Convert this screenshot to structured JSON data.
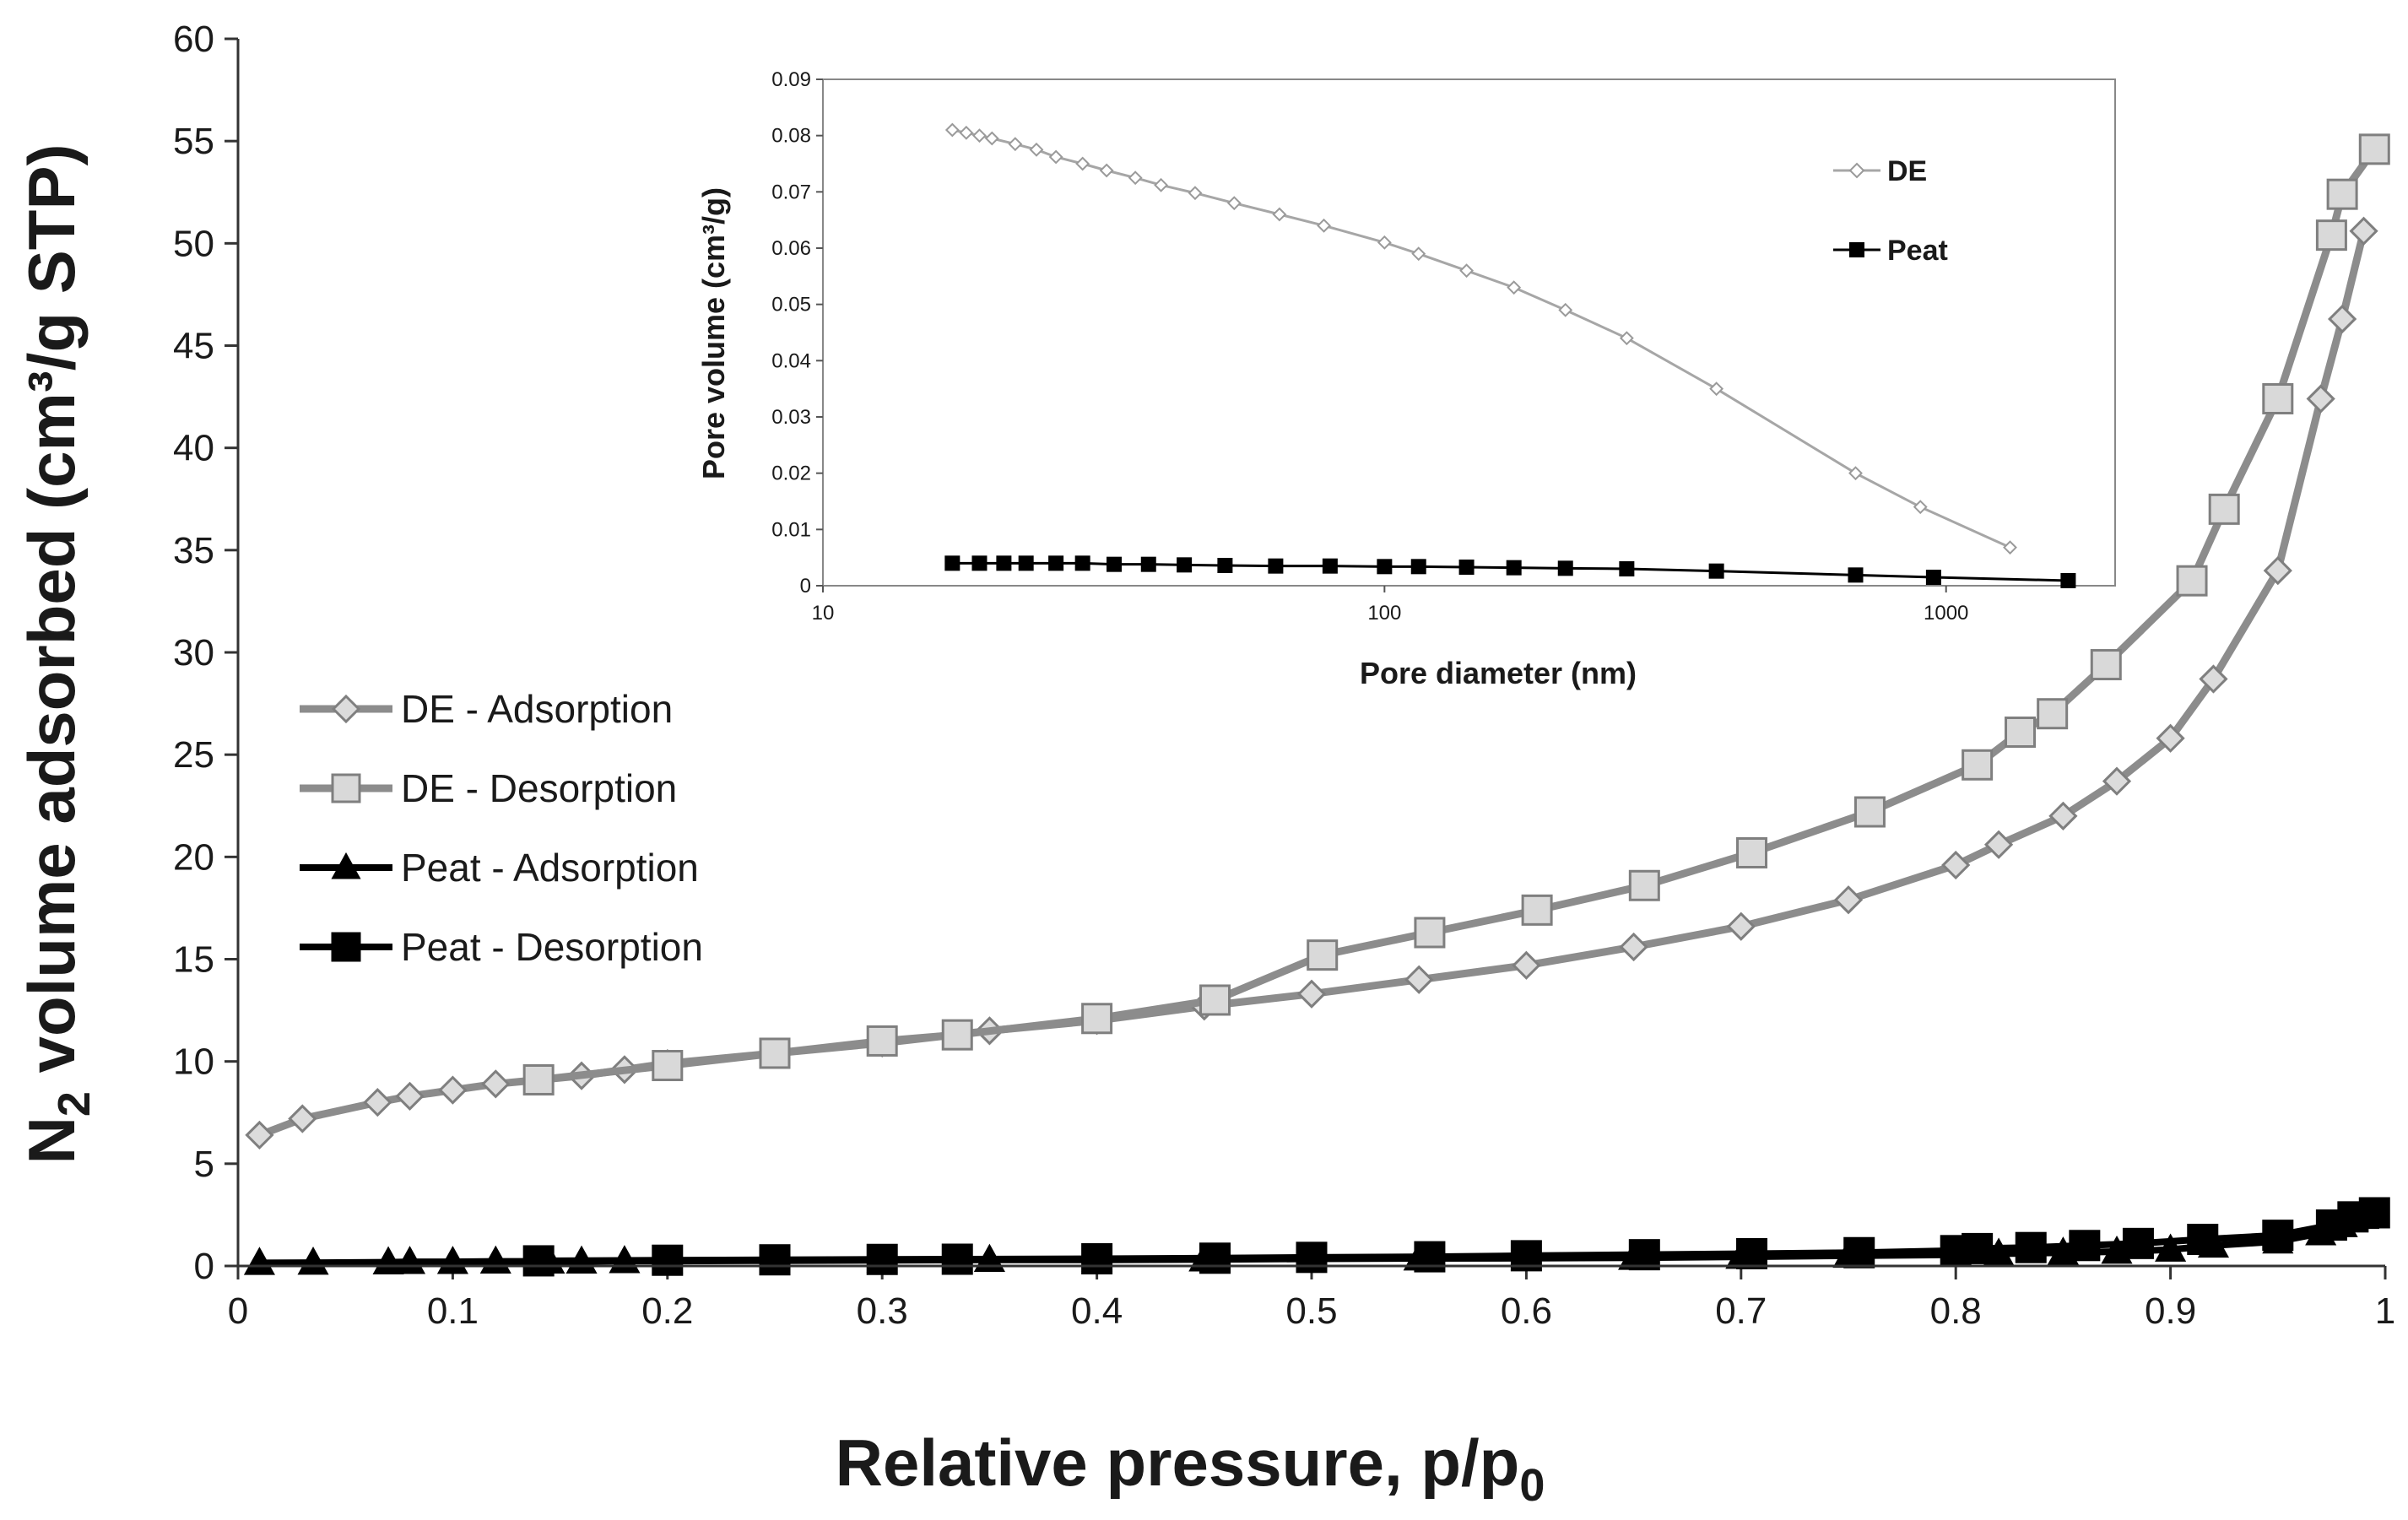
{
  "chart_data": [
    {
      "type": "line",
      "name": "main",
      "xlabel": "Relative pressure, p/p",
      "xlabel_sub": "0",
      "ylabel_pre": "N",
      "ylabel_sub": "2",
      "ylabel_post": " volume adsorbed (cm³/g STP)",
      "xlim": [
        0,
        1
      ],
      "ylim": [
        0,
        60
      ],
      "xticks": [
        0,
        0.1,
        0.2,
        0.3,
        0.4,
        0.5,
        0.6,
        0.7,
        0.8,
        0.9,
        1
      ],
      "xtick_labels": [
        "0",
        "0.1",
        "0.2",
        "0.3",
        "0.4",
        "0.5",
        "0.6",
        "0.7",
        "0.8",
        "0.9",
        "1"
      ],
      "yticks": [
        0,
        5,
        10,
        15,
        20,
        25,
        30,
        35,
        40,
        45,
        50,
        55,
        60
      ],
      "ytick_labels": [
        "0",
        "5",
        "10",
        "15",
        "20",
        "25",
        "30",
        "35",
        "40",
        "45",
        "50",
        "55",
        "60"
      ],
      "legend_position": "left-middle",
      "series": [
        {
          "name": "DE - Adsorption",
          "color": "#8c8c8c",
          "marker": "diamond",
          "marker_fill": "#dcdcdc",
          "x": [
            0.01,
            0.03,
            0.065,
            0.08,
            0.1,
            0.12,
            0.14,
            0.16,
            0.18,
            0.2,
            0.25,
            0.3,
            0.35,
            0.4,
            0.45,
            0.5,
            0.55,
            0.6,
            0.65,
            0.7,
            0.75,
            0.8,
            0.82,
            0.85,
            0.875,
            0.9,
            0.92,
            0.95,
            0.97,
            0.98,
            0.99
          ],
          "y": [
            6.4,
            7.2,
            8.0,
            8.3,
            8.6,
            8.9,
            9.1,
            9.3,
            9.6,
            9.9,
            10.4,
            10.9,
            11.5,
            12.0,
            12.7,
            13.3,
            14.0,
            14.7,
            15.6,
            16.6,
            17.9,
            19.6,
            20.6,
            22.0,
            23.7,
            25.8,
            28.7,
            34.0,
            42.4,
            46.3,
            50.6
          ]
        },
        {
          "name": "DE - Desorption",
          "color": "#8c8c8c",
          "marker": "square",
          "marker_fill": "#d9d9d9",
          "x": [
            0.995,
            0.98,
            0.975,
            0.95,
            0.925,
            0.91,
            0.87,
            0.845,
            0.83,
            0.81,
            0.76,
            0.705,
            0.655,
            0.605,
            0.555,
            0.505,
            0.455,
            0.4,
            0.335,
            0.3,
            0.25,
            0.2,
            0.14
          ],
          "y": [
            54.6,
            52.4,
            50.4,
            42.4,
            37.0,
            33.5,
            29.4,
            27.0,
            26.1,
            24.5,
            22.2,
            20.2,
            18.6,
            17.4,
            16.3,
            15.2,
            13.0,
            12.1,
            11.3,
            11.0,
            10.4,
            9.8,
            9.1
          ]
        },
        {
          "name": "Peat - Adsorption",
          "color": "#000000",
          "marker": "triangle",
          "marker_fill": "#000000",
          "x": [
            0.01,
            0.035,
            0.07,
            0.08,
            0.1,
            0.12,
            0.145,
            0.16,
            0.18,
            0.2,
            0.25,
            0.3,
            0.35,
            0.4,
            0.45,
            0.5,
            0.55,
            0.6,
            0.65,
            0.7,
            0.75,
            0.8,
            0.82,
            0.85,
            0.875,
            0.9,
            0.92,
            0.95,
            0.97,
            0.98,
            0.99
          ],
          "y": [
            0.15,
            0.16,
            0.18,
            0.2,
            0.2,
            0.22,
            0.22,
            0.22,
            0.24,
            0.24,
            0.26,
            0.28,
            0.3,
            0.3,
            0.32,
            0.35,
            0.37,
            0.38,
            0.4,
            0.45,
            0.5,
            0.55,
            0.6,
            0.65,
            0.7,
            0.8,
            1.0,
            1.2,
            1.6,
            2.0,
            2.4
          ]
        },
        {
          "name": "Peat - Desorption",
          "color": "#000000",
          "marker": "square",
          "marker_fill": "#000000",
          "x": [
            0.995,
            0.985,
            0.975,
            0.95,
            0.915,
            0.885,
            0.86,
            0.835,
            0.81,
            0.8,
            0.755,
            0.705,
            0.655,
            0.6,
            0.555,
            0.5,
            0.455,
            0.4,
            0.335,
            0.3,
            0.25,
            0.2,
            0.14
          ],
          "y": [
            2.6,
            2.4,
            2.0,
            1.5,
            1.3,
            1.1,
            1.0,
            0.9,
            0.85,
            0.75,
            0.65,
            0.6,
            0.55,
            0.5,
            0.45,
            0.42,
            0.38,
            0.35,
            0.33,
            0.32,
            0.3,
            0.28,
            0.25
          ]
        }
      ]
    },
    {
      "type": "line",
      "name": "inset",
      "xlabel": "Pore diameter (nm)",
      "ylabel": "Pore volume (cm³/g)",
      "xscale": "log",
      "xlim": [
        10,
        2000
      ],
      "ylim": [
        0,
        0.09
      ],
      "xticks": [
        10,
        100,
        1000
      ],
      "xtick_labels": [
        "10",
        "100",
        "1000"
      ],
      "yticks": [
        0,
        0.01,
        0.02,
        0.03,
        0.04,
        0.05,
        0.06,
        0.07,
        0.08,
        0.09
      ],
      "ytick_labels": [
        "0",
        "0.01",
        "0.02",
        "0.03",
        "0.04",
        "0.05",
        "0.06",
        "0.07",
        "0.08",
        "0.09"
      ],
      "legend_position": "top-right",
      "series": [
        {
          "name": "DE",
          "color": "#a6a6a6",
          "marker": "diamond",
          "marker_fill": "#ffffff",
          "x": [
            17,
            18,
            19,
            20,
            22,
            24,
            26,
            29,
            32,
            36,
            40,
            46,
            54,
            65,
            78,
            100,
            115,
            140,
            170,
            210,
            270,
            390,
            690,
            900,
            1300
          ],
          "y": [
            0.081,
            0.0805,
            0.08,
            0.0795,
            0.0785,
            0.0775,
            0.0762,
            0.075,
            0.0738,
            0.0725,
            0.0712,
            0.0698,
            0.068,
            0.066,
            0.064,
            0.061,
            0.059,
            0.056,
            0.053,
            0.049,
            0.044,
            0.035,
            0.02,
            0.014,
            0.0068
          ]
        },
        {
          "name": "Peat",
          "color": "#000000",
          "marker": "square",
          "marker_fill": "#000000",
          "x": [
            17,
            19,
            21,
            23,
            26,
            29,
            33,
            38,
            44,
            52,
            64,
            80,
            100,
            115,
            140,
            170,
            210,
            270,
            390,
            690,
            950,
            1650
          ],
          "y": [
            0.004,
            0.004,
            0.004,
            0.004,
            0.004,
            0.004,
            0.0038,
            0.0038,
            0.0037,
            0.0036,
            0.0035,
            0.0035,
            0.0034,
            0.0034,
            0.0033,
            0.0032,
            0.0031,
            0.003,
            0.0026,
            0.0019,
            0.0015,
            0.0009
          ]
        }
      ]
    }
  ]
}
